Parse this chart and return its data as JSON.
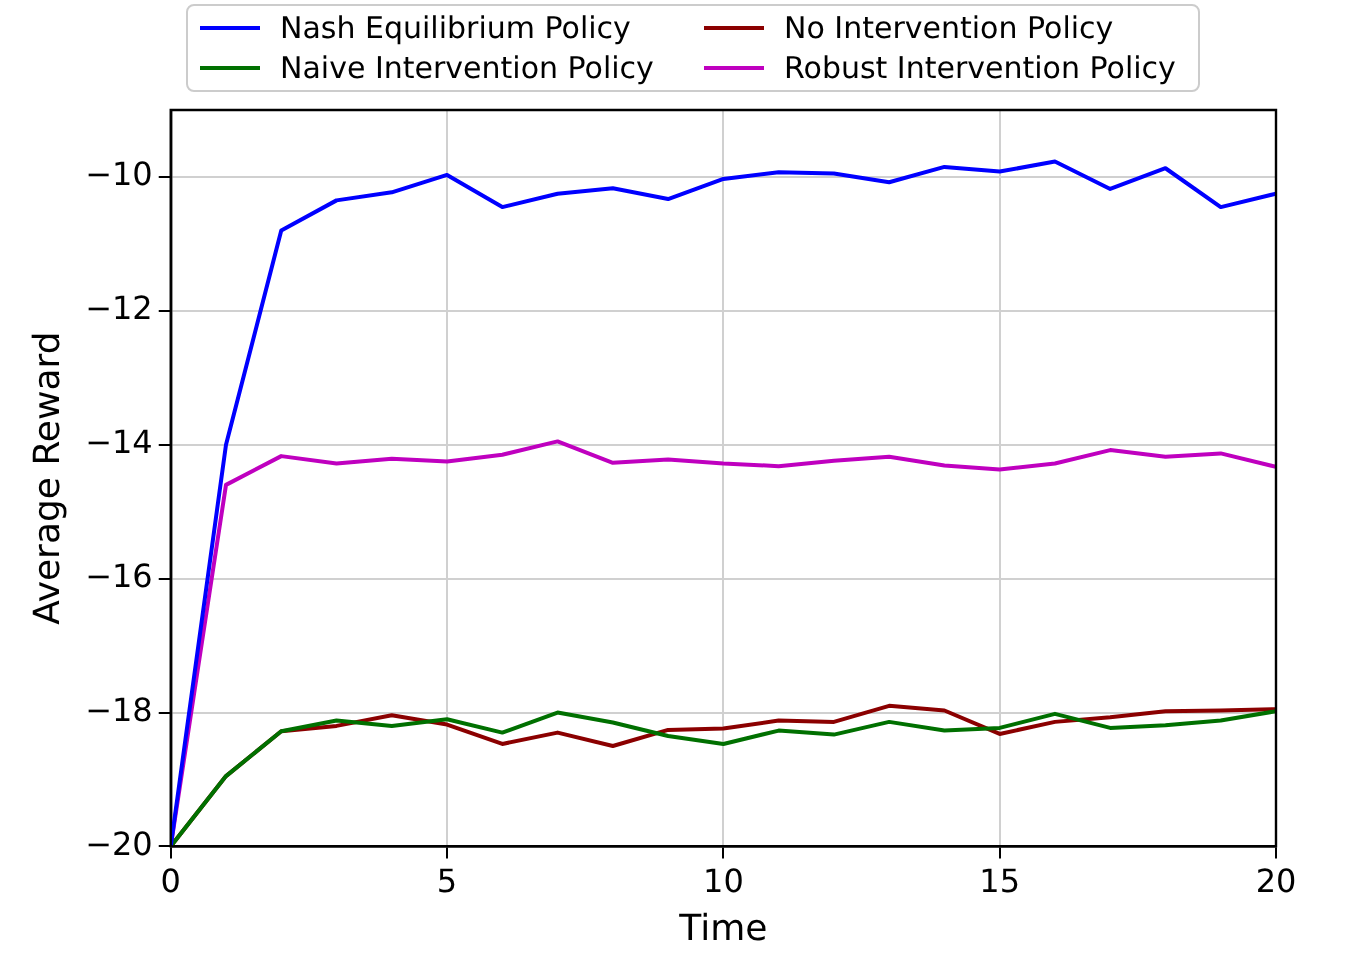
{
  "chart_data": {
    "type": "line",
    "xlabel": "Time",
    "ylabel": "Average Reward",
    "x": [
      0,
      1,
      2,
      3,
      4,
      5,
      6,
      7,
      8,
      9,
      10,
      11,
      12,
      13,
      14,
      15,
      16,
      17,
      18,
      19,
      20
    ],
    "series": [
      {
        "name": "Nash Equilibrium Policy",
        "color": "#0000ff",
        "values": [
          -20,
          -14.0,
          -10.8,
          -10.35,
          -10.23,
          -9.97,
          -10.45,
          -10.25,
          -10.17,
          -10.33,
          -10.03,
          -9.93,
          -9.95,
          -10.08,
          -9.85,
          -9.92,
          -9.77,
          -10.18,
          -9.87,
          -10.45,
          -10.25
        ]
      },
      {
        "name": "Naive Intervention Policy",
        "color": "#007000",
        "values": [
          -20,
          -18.95,
          -18.28,
          -18.12,
          -18.2,
          -18.1,
          -18.3,
          -18.0,
          -18.15,
          -18.35,
          -18.47,
          -18.27,
          -18.33,
          -18.14,
          -18.27,
          -18.23,
          -18.02,
          -18.23,
          -18.19,
          -18.12,
          -17.98
        ]
      },
      {
        "name": "No Intervention Policy",
        "color": "#8b0000",
        "values": [
          -20,
          -18.95,
          -18.28,
          -18.2,
          -18.04,
          -18.18,
          -18.47,
          -18.3,
          -18.5,
          -18.26,
          -18.24,
          -18.12,
          -18.14,
          -17.9,
          -17.97,
          -18.32,
          -18.14,
          -18.07,
          -17.98,
          -17.97,
          -17.95
        ]
      },
      {
        "name": "Robust Intervention Policy",
        "color": "#bf00bf",
        "values": [
          -20,
          -14.6,
          -14.17,
          -14.28,
          -14.21,
          -14.25,
          -14.15,
          -13.95,
          -14.27,
          -14.22,
          -14.28,
          -14.32,
          -14.24,
          -14.18,
          -14.31,
          -14.37,
          -14.28,
          -14.08,
          -14.18,
          -14.13,
          -14.33
        ]
      }
    ],
    "xlim": [
      0,
      20
    ],
    "xticks": [
      0,
      5,
      10,
      15,
      20
    ],
    "ylim": [
      -20,
      -9
    ],
    "yticks": [
      -20,
      -18,
      -16,
      -14,
      -12,
      -10
    ],
    "grid": true,
    "legend": "top",
    "marker": "none",
    "line_style": "solid"
  }
}
